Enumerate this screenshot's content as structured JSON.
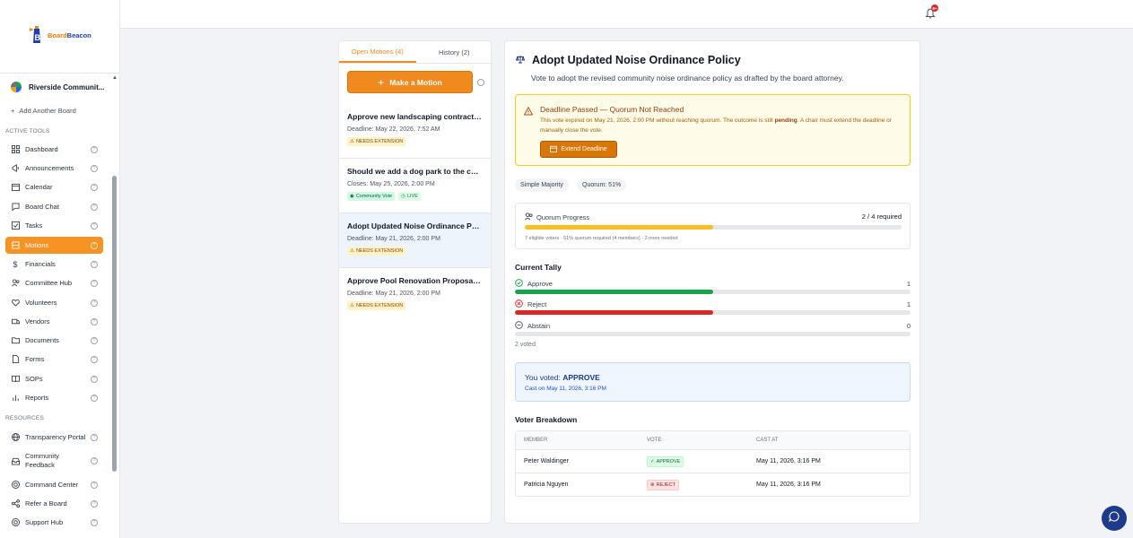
{
  "brand": {
    "logo_part1": "Board",
    "logo_part2": "Beacon"
  },
  "sidebar": {
    "board_name": "Riverside Communit...",
    "add_board": "Add Another Board",
    "sections": {
      "active_tools": "ACTIVE TOOLS",
      "resources": "RESOURCES"
    },
    "items": [
      {
        "label": "Dashboard",
        "icon": "grid-icon"
      },
      {
        "label": "Announcements",
        "icon": "megaphone-icon"
      },
      {
        "label": "Calendar",
        "icon": "calendar-icon"
      },
      {
        "label": "Board Chat",
        "icon": "chat-icon"
      },
      {
        "label": "Tasks",
        "icon": "checkbox-icon"
      },
      {
        "label": "Motions",
        "icon": "gavel-icon"
      },
      {
        "label": "Financials",
        "icon": "dollar-icon"
      },
      {
        "label": "Committee Hub",
        "icon": "users-icon"
      },
      {
        "label": "Volunteers",
        "icon": "heart-icon"
      },
      {
        "label": "Vendors",
        "icon": "truck-icon"
      },
      {
        "label": "Documents",
        "icon": "folder-icon"
      },
      {
        "label": "Forms",
        "icon": "file-icon"
      },
      {
        "label": "SOPs",
        "icon": "book-icon"
      },
      {
        "label": "Reports",
        "icon": "bar-chart-icon"
      }
    ],
    "resources": [
      {
        "label": "Transparency Portal",
        "icon": "globe-icon"
      },
      {
        "label": "Community Feedback",
        "icon": "inbox-icon"
      },
      {
        "label": "Command Center",
        "icon": "target-icon"
      },
      {
        "label": "Refer a Board",
        "icon": "share-icon"
      },
      {
        "label": "Support Hub",
        "icon": "help-icon"
      }
    ]
  },
  "topbar": {
    "notification_count": "9+"
  },
  "list": {
    "tabs": [
      "Open Motions (4)",
      "History (2)"
    ],
    "make_motion": "Make a Motion",
    "motions": [
      {
        "title": "Approve new landscaping contract fo...",
        "sub": "Deadline: May 22, 2026, 7:52 AM",
        "badges": [
          {
            "text": "NEEDS EXTENSION",
            "kind": "warn"
          }
        ]
      },
      {
        "title": "Should we add a dog park to the com...",
        "sub": "Closes: May 25, 2026, 2:00 PM",
        "badges": [
          {
            "text": "Community Vote",
            "kind": "cv"
          },
          {
            "text": "LIVE",
            "kind": "live"
          }
        ]
      },
      {
        "title": "Adopt Updated Noise Ordinance Policy",
        "sub": "Deadline: May 21, 2026, 2:00 PM",
        "badges": [
          {
            "text": "NEEDS EXTENSION",
            "kind": "warn"
          }
        ]
      },
      {
        "title": "Approve Pool Renovation Proposal —...",
        "sub": "Deadline: May 21, 2026, 2:00 PM",
        "badges": [
          {
            "text": "NEEDS EXTENSION",
            "kind": "warn"
          }
        ]
      }
    ]
  },
  "detail": {
    "title": "Adopt Updated Noise Ordinance Policy",
    "subtitle": "Vote to adopt the revised community noise ordinance policy as drafted by the board attorney.",
    "alert": {
      "title": "Deadline Passed — Quorum Not Reached",
      "body_pre": "This vote expired on May 21, 2026, 2:00 PM without reaching quorum. The outcome is still ",
      "body_bold": "pending",
      "body_post": ". A chair must extend the deadline or manually close the vote.",
      "button": "Extend Deadline"
    },
    "chips": [
      "Simple Majority",
      "Quorum: 51%"
    ],
    "quorum": {
      "label": "Quorum Progress",
      "value": "2 / 4 required",
      "progress": 0.5,
      "note": "7 eligible voters · 51% quorum required (4 members) · 2 more needed",
      "color": "#fbbf24"
    },
    "tally_title": "Current Tally",
    "tally": [
      {
        "label": "Approve",
        "count": "1",
        "fraction": 0.5,
        "color": "#16a34a"
      },
      {
        "label": "Reject",
        "count": "1",
        "fraction": 0.5,
        "color": "#dc2626"
      },
      {
        "label": "Abstain",
        "count": "0",
        "fraction": 0,
        "color": "#6b7280"
      }
    ],
    "voted_count": "2 voted",
    "you_voted": {
      "prefix": "You voted: ",
      "vote": "APPROVE",
      "cast": "Cast on May 11, 2026, 3:16 PM"
    },
    "breakdown_title": "Voter Breakdown",
    "columns": [
      "MEMBER",
      "VOTE",
      "CAST AT"
    ],
    "rows": [
      {
        "member": "Peter Waldinger",
        "vote": "APPROVE",
        "kind": "approve",
        "cast": "May 11, 2026, 3:16 PM"
      },
      {
        "member": "Patricia Nguyen",
        "vote": "REJECT",
        "kind": "reject",
        "cast": "May 11, 2026, 3:16 PM"
      }
    ]
  }
}
